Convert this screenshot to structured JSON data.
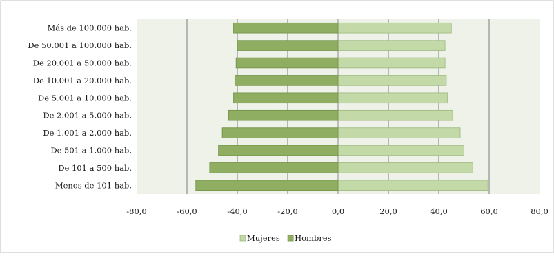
{
  "chart_data": {
    "type": "bar",
    "orientation": "horizontal",
    "categories": [
      "Más de 100.000 hab.",
      "De 50.001 a 100.000 hab.",
      "De 20.001 a 50.000 hab.",
      "De 10.001 a 20.000 hab.",
      "De 5.001 a 10.000 hab.",
      "De 2.001 a 5.000 hab.",
      "De 1.001 a 2.000 hab.",
      "De 501 a 1.000 hab.",
      "De 101 a 500 hab.",
      "Menos de 101 hab."
    ],
    "series": [
      {
        "name": "Mujeres",
        "color": "#c3d9a8",
        "values": [
          45.0,
          42.5,
          42.5,
          43.0,
          43.5,
          45.5,
          48.5,
          50.0,
          53.5,
          59.5
        ]
      },
      {
        "name": "Hombres",
        "color": "#8fae62",
        "values": [
          -41.5,
          -40.0,
          -40.5,
          -41.0,
          -41.5,
          -43.5,
          -46.0,
          -47.5,
          -51.0,
          -56.5
        ]
      }
    ],
    "xlim": [
      -80,
      80
    ],
    "xticks": [
      -80,
      -60,
      -40,
      -20,
      0,
      20,
      40,
      60,
      80
    ],
    "xtick_labels": [
      "-80,0",
      "-60,0",
      "-40,0",
      "-20,0",
      "0,0",
      "20,0",
      "40,0",
      "60,0",
      "80,0"
    ],
    "grid": "vertical",
    "legend": "bottom"
  }
}
